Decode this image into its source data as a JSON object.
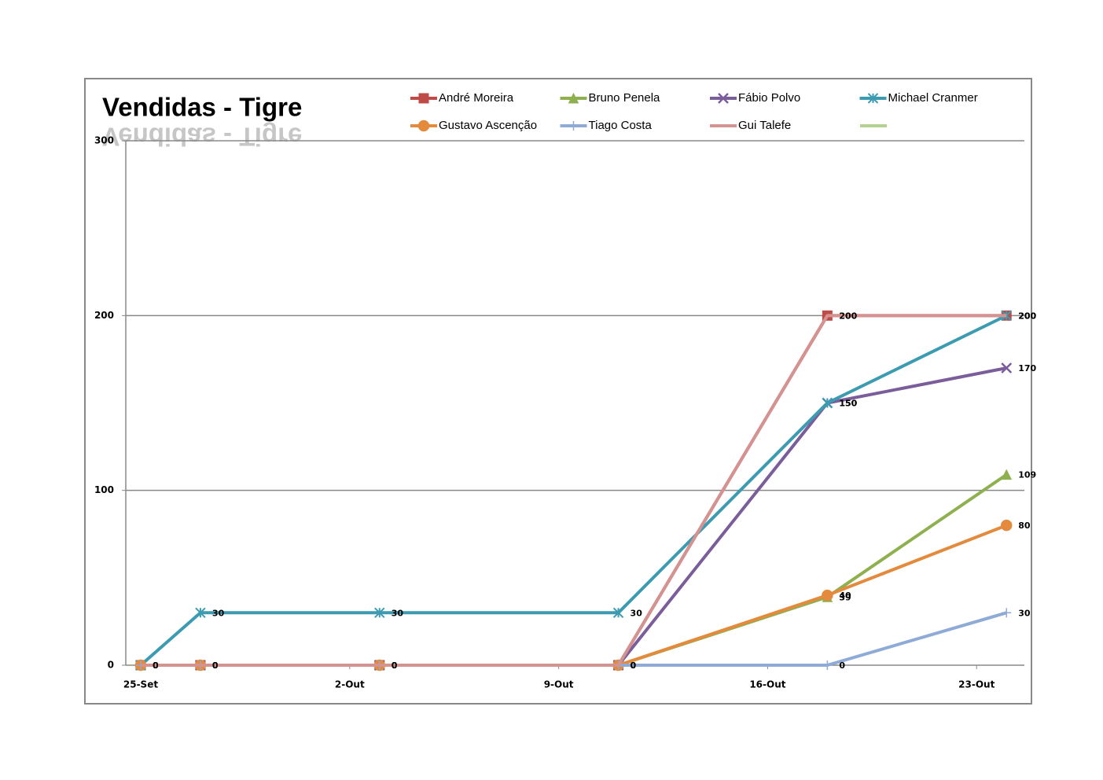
{
  "chart_data": {
    "type": "line",
    "title": "Vendidas - Tigre",
    "x": [
      25,
      27,
      33,
      41,
      48,
      54
    ],
    "xlim": [
      24.5,
      54.6
    ],
    "xticks": [
      {
        "value": 25,
        "label": "25-Set"
      },
      {
        "value": 32,
        "label": "2-Out"
      },
      {
        "value": 39,
        "label": "9-Out"
      },
      {
        "value": 46,
        "label": "16-Out"
      },
      {
        "value": 53,
        "label": "23-Out"
      }
    ],
    "ylim": [
      0,
      300
    ],
    "yticks": [
      0,
      100,
      200,
      300
    ],
    "grid": true,
    "series": [
      {
        "name": "André Moreira",
        "color": "#be4b48",
        "marker": "square",
        "values": [
          0,
          0,
          0,
          0,
          200,
          200
        ]
      },
      {
        "name": "Bruno Penela",
        "color": "#8eb04f",
        "marker": "triangle",
        "values": [
          0,
          0,
          0,
          0,
          39,
          109
        ]
      },
      {
        "name": "Fábio Polvo",
        "color": "#7a5d9a",
        "marker": "x",
        "values": [
          0,
          0,
          0,
          0,
          150,
          170
        ]
      },
      {
        "name": "Michael Cranmer",
        "color": "#3c9bb0",
        "marker": "asterisk",
        "values": [
          0,
          30,
          30,
          30,
          150,
          200
        ]
      },
      {
        "name": "Gustavo Ascenção",
        "color": "#e48a3c",
        "marker": "circle",
        "values": [
          0,
          0,
          0,
          0,
          40,
          80
        ]
      },
      {
        "name": "Tiago Costa",
        "color": "#8eaad6",
        "marker": "plus",
        "values": [
          0,
          0,
          0,
          0,
          0,
          30
        ]
      },
      {
        "name": "Gui Talefe",
        "color": "#d49290",
        "marker": "none",
        "values": [
          0,
          0,
          0,
          0,
          200,
          200
        ]
      }
    ]
  }
}
